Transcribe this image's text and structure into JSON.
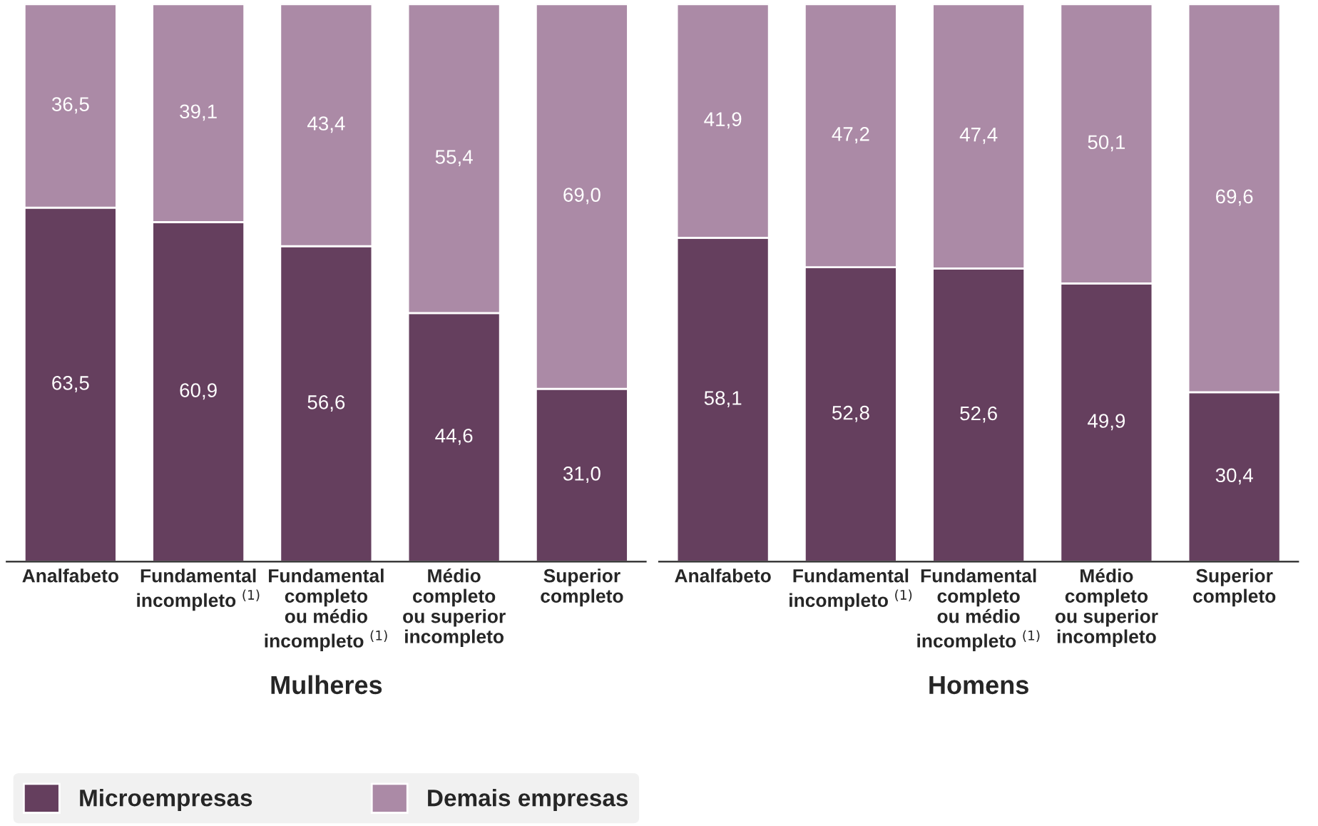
{
  "chart_data": [
    {
      "type": "bar",
      "stacked": true,
      "xlabel": "Mulheres",
      "categories": [
        "Analfabeto",
        "Fundamental\nincompleto $^{(1)}$",
        "Fundamental\ncompleto\nou médio\nincompleto $^{(1)}$",
        "Médio\ncompleto\nou superior\nincompleto",
        "Superior\ncompleto"
      ],
      "ylim": [
        0,
        100
      ],
      "tick_labels": "x",
      "legend": "bottom",
      "series": [
        {
          "name": "Microempresas",
          "color": "#653f5e",
          "values": [
            63.5,
            60.9,
            56.6,
            44.6,
            31.0
          ],
          "value_labels": [
            "63,5",
            "60,9",
            "56,6",
            "44,6",
            "31,0"
          ]
        },
        {
          "name": "Demais empresas",
          "color": "#ab8aa6",
          "values": [
            36.5,
            39.1,
            43.4,
            55.4,
            69.0
          ],
          "value_labels": [
            "36,5",
            "39,1",
            "43,4",
            "55,4",
            "69,0"
          ]
        }
      ]
    },
    {
      "type": "bar",
      "stacked": true,
      "xlabel": "Homens",
      "categories": [
        "Analfabeto",
        "Fundamental\nincompleto $^{(1)}$",
        "Fundamental\ncompleto\nou médio\nincompleto $^{(1)}$",
        "Médio\ncompleto\nou superior\nincompleto",
        "Superior\ncompleto"
      ],
      "ylim": [
        0,
        100
      ],
      "tick_labels": "x",
      "series": [
        {
          "color": "#653f5e",
          "values": [
            58.1,
            52.8,
            52.6,
            49.9,
            30.4
          ],
          "value_labels": [
            "58,1",
            "52,8",
            "52,6",
            "49,9",
            "30,4"
          ]
        },
        {
          "color": "#ab8aa6",
          "values": [
            41.9,
            47.2,
            47.4,
            50.1,
            69.6
          ],
          "value_labels": [
            "41,9",
            "47,2",
            "47,4",
            "50,1",
            "69,6"
          ]
        }
      ]
    }
  ]
}
